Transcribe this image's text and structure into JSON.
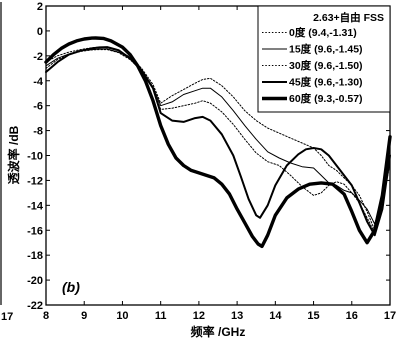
{
  "chart_data": {
    "type": "line",
    "xlabel": "频率 /GHz",
    "ylabel": "透波率 /dB",
    "xlim": [
      8,
      17
    ],
    "ylim": [
      -22,
      2
    ],
    "xticks": [
      8,
      9,
      10,
      11,
      12,
      13,
      14,
      15,
      16,
      17
    ],
    "yticks": [
      2,
      0,
      -2,
      -4,
      -6,
      -8,
      -10,
      -12,
      -14,
      -16,
      -18,
      -20,
      -22
    ],
    "left_edge_ticks": [
      "17"
    ],
    "grid": false,
    "legend_position": "top-right",
    "legend_title": "2.63+自由 FSS",
    "panel_label": "(b)",
    "series": [
      {
        "name": "0度 (9.4,-1.31)",
        "style": "dotted",
        "color": "#000000",
        "x": [
          8.0,
          8.3,
          8.6,
          8.9,
          9.2,
          9.4,
          9.6,
          9.9,
          10.2,
          10.5,
          10.8,
          11.0,
          11.3,
          11.6,
          11.9,
          12.1,
          12.3,
          12.6,
          12.9,
          13.2,
          13.5,
          13.8,
          14.1,
          14.4,
          14.7,
          15.0,
          15.2,
          15.4,
          15.6,
          15.8,
          16.0,
          16.2,
          16.4,
          16.6,
          16.8,
          17.0
        ],
        "y": [
          -2.5,
          -2.0,
          -1.7,
          -1.5,
          -1.35,
          -1.31,
          -1.35,
          -1.6,
          -2.1,
          -3.0,
          -4.3,
          -5.8,
          -5.2,
          -4.7,
          -4.2,
          -3.9,
          -3.8,
          -4.4,
          -5.3,
          -6.4,
          -7.2,
          -7.8,
          -8.2,
          -8.6,
          -9.0,
          -9.4,
          -10.0,
          -10.8,
          -11.2,
          -11.8,
          -12.4,
          -13.2,
          -14.5,
          -16.0,
          -14.0,
          -10.5
        ]
      },
      {
        "name": "15度 (9.6,-1.45)",
        "style": "thin",
        "color": "#000000",
        "x": [
          8.0,
          8.3,
          8.6,
          8.9,
          9.2,
          9.4,
          9.6,
          9.9,
          10.2,
          10.5,
          10.8,
          11.0,
          11.3,
          11.6,
          11.9,
          12.1,
          12.3,
          12.6,
          12.9,
          13.2,
          13.5,
          13.8,
          14.1,
          14.4,
          14.7,
          15.0,
          15.2,
          15.4,
          15.6,
          15.8,
          16.0,
          16.2,
          16.4,
          16.6,
          16.8,
          17.0
        ],
        "y": [
          -2.8,
          -2.2,
          -1.85,
          -1.6,
          -1.5,
          -1.45,
          -1.45,
          -1.7,
          -2.2,
          -3.1,
          -4.5,
          -6.0,
          -5.7,
          -5.1,
          -4.8,
          -4.6,
          -4.6,
          -5.3,
          -6.4,
          -7.6,
          -8.7,
          -9.7,
          -10.2,
          -10.6,
          -10.9,
          -11.0,
          -11.6,
          -12.2,
          -12.4,
          -12.8,
          -13.0,
          -13.6,
          -14.3,
          -15.5,
          -13.5,
          -10.0
        ]
      },
      {
        "name": "30度 (9.6,-1.50)",
        "style": "dotted",
        "color": "#000000",
        "x": [
          8.0,
          8.3,
          8.6,
          8.9,
          9.2,
          9.4,
          9.6,
          9.9,
          10.2,
          10.5,
          10.8,
          11.0,
          11.3,
          11.6,
          11.9,
          12.1,
          12.3,
          12.6,
          12.9,
          13.2,
          13.5,
          13.8,
          14.1,
          14.4,
          14.7,
          15.0,
          15.2,
          15.4,
          15.6,
          15.8,
          16.0,
          16.2,
          16.4,
          16.6,
          16.8,
          17.0
        ],
        "y": [
          -3.0,
          -2.3,
          -1.9,
          -1.65,
          -1.52,
          -1.5,
          -1.5,
          -1.75,
          -2.3,
          -3.2,
          -4.6,
          -6.3,
          -6.2,
          -6.0,
          -5.8,
          -5.6,
          -5.8,
          -6.5,
          -7.5,
          -8.7,
          -9.8,
          -10.5,
          -10.8,
          -11.6,
          -12.5,
          -13.2,
          -13.0,
          -12.4,
          -12.1,
          -12.3,
          -13.0,
          -13.8,
          -15.0,
          -16.2,
          -14.0,
          -10.6
        ]
      },
      {
        "name": "45度 (9.6,-1.30)",
        "style": "medium",
        "color": "#000000",
        "x": [
          8.0,
          8.3,
          8.6,
          8.9,
          9.2,
          9.4,
          9.6,
          9.9,
          10.2,
          10.5,
          10.8,
          11.0,
          11.3,
          11.6,
          11.9,
          12.1,
          12.3,
          12.6,
          12.9,
          13.1,
          13.3,
          13.5,
          13.6,
          13.8,
          14.0,
          14.3,
          14.6,
          14.8,
          15.0,
          15.2,
          15.4,
          15.6,
          15.8,
          16.0,
          16.2,
          16.4,
          16.6,
          16.8,
          17.0
        ],
        "y": [
          -3.3,
          -2.5,
          -1.9,
          -1.6,
          -1.4,
          -1.32,
          -1.3,
          -1.55,
          -2.2,
          -3.2,
          -4.6,
          -6.6,
          -7.2,
          -7.3,
          -7.0,
          -6.9,
          -7.2,
          -8.3,
          -10.0,
          -11.7,
          -13.5,
          -14.8,
          -15.0,
          -14.0,
          -12.4,
          -10.8,
          -9.9,
          -9.5,
          -9.4,
          -9.5,
          -10.0,
          -10.8,
          -11.6,
          -12.4,
          -13.8,
          -15.3,
          -16.4,
          -14.3,
          -10.0
        ]
      },
      {
        "name": "60度 (9.3,-0.57)",
        "style": "thick",
        "color": "#000000",
        "x": [
          8.0,
          8.2,
          8.4,
          8.6,
          8.8,
          9.0,
          9.2,
          9.3,
          9.5,
          9.7,
          10.0,
          10.2,
          10.4,
          10.6,
          10.8,
          11.0,
          11.2,
          11.4,
          11.6,
          11.8,
          12.0,
          12.2,
          12.4,
          12.6,
          12.8,
          13.0,
          13.2,
          13.4,
          13.55,
          13.65,
          13.8,
          14.0,
          14.3,
          14.6,
          14.9,
          15.2,
          15.5,
          15.8,
          16.0,
          16.2,
          16.4,
          16.6,
          16.8,
          17.0
        ],
        "y": [
          -2.5,
          -1.9,
          -1.4,
          -1.05,
          -0.8,
          -0.65,
          -0.58,
          -0.57,
          -0.6,
          -0.8,
          -1.3,
          -1.9,
          -2.8,
          -4.0,
          -5.6,
          -7.6,
          -9.1,
          -10.2,
          -10.8,
          -11.2,
          -11.4,
          -11.6,
          -11.8,
          -12.3,
          -13.1,
          -14.3,
          -15.4,
          -16.5,
          -17.1,
          -17.3,
          -16.4,
          -14.8,
          -13.4,
          -12.7,
          -12.3,
          -12.2,
          -12.3,
          -13.1,
          -14.5,
          -16.0,
          -17.0,
          -16.0,
          -13.2,
          -8.5
        ]
      }
    ]
  }
}
